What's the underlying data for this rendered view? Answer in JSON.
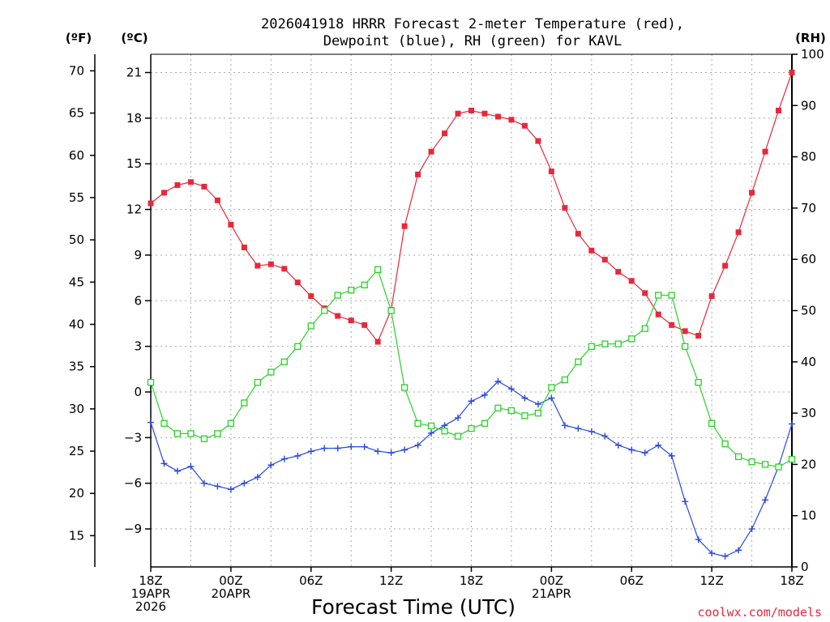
{
  "chart_data": {
    "type": "line",
    "title": "2026041918 HRRR Forecast 2-meter Temperature (red),",
    "subtitle": "Dewpoint (blue), RH (green) for KAVL",
    "xlabel": "Forecast Time (UTC)",
    "credit": "coolwx.com/models",
    "units": {
      "fahrenheit": "(ºF)",
      "celsius": "(ºC)",
      "rh": "(RH)"
    },
    "x_hours": [
      0,
      1,
      2,
      3,
      4,
      5,
      6,
      7,
      8,
      9,
      10,
      11,
      12,
      13,
      14,
      15,
      16,
      17,
      18,
      19,
      20,
      21,
      22,
      23,
      24,
      25,
      26,
      27,
      28,
      29,
      30,
      31,
      32,
      33,
      34,
      35,
      36,
      37,
      38,
      39,
      40,
      41,
      42,
      43,
      44,
      45,
      46,
      47,
      48
    ],
    "xlim": [
      0,
      48
    ],
    "x_ticks": [
      {
        "hour": 0,
        "lines": [
          "18Z",
          "19APR",
          "2026"
        ]
      },
      {
        "hour": 6,
        "lines": [
          "00Z",
          "20APR"
        ]
      },
      {
        "hour": 12,
        "lines": [
          "06Z"
        ]
      },
      {
        "hour": 18,
        "lines": [
          "12Z"
        ]
      },
      {
        "hour": 24,
        "lines": [
          "18Z"
        ]
      },
      {
        "hour": 30,
        "lines": [
          "00Z",
          "21APR"
        ]
      },
      {
        "hour": 36,
        "lines": [
          "06Z"
        ]
      },
      {
        "hour": 42,
        "lines": [
          "12Z"
        ]
      },
      {
        "hour": 48,
        "lines": [
          "18Z"
        ]
      }
    ],
    "y_celsius_ticks": [
      "21",
      "18",
      "15",
      "12",
      "9",
      "6",
      "3",
      "0",
      "−3",
      "−6",
      "−9"
    ],
    "y_celsius_values": [
      21,
      18,
      15,
      12,
      9,
      6,
      3,
      0,
      -3,
      -6,
      -9
    ],
    "ylim_celsius": [
      -11.5,
      22.2
    ],
    "y_fahrenheit_ticks": [
      "70",
      "65",
      "60",
      "55",
      "50",
      "45",
      "40",
      "35",
      "30",
      "25",
      "20",
      "15"
    ],
    "y_fahrenheit_values": [
      70,
      65,
      60,
      55,
      50,
      45,
      40,
      35,
      30,
      25,
      20,
      15
    ],
    "y_rh_ticks": [
      "100",
      "90",
      "80",
      "70",
      "60",
      "50",
      "40",
      "30",
      "20",
      "10",
      "0"
    ],
    "y_rh_values": [
      100,
      90,
      80,
      70,
      60,
      50,
      40,
      30,
      20,
      10,
      0
    ],
    "ylim_rh": [
      0,
      100
    ],
    "series": [
      {
        "name": "2-meter Temperature",
        "units": "celsius",
        "color": "#e8283a",
        "marker": "filled-square",
        "values": [
          12.4,
          13.1,
          13.6,
          13.8,
          13.5,
          12.6,
          11.0,
          9.5,
          8.3,
          8.4,
          8.1,
          7.2,
          6.3,
          5.5,
          5.0,
          4.7,
          4.4,
          3.3,
          5.4,
          10.9,
          14.3,
          15.8,
          17.0,
          18.3,
          18.5,
          18.3,
          18.1,
          17.9,
          17.5,
          16.5,
          14.5,
          12.1,
          10.4,
          9.3,
          8.7,
          7.9,
          7.3,
          6.5,
          5.1,
          4.4,
          4.0,
          3.7,
          6.3,
          8.3,
          10.5,
          13.1,
          15.8,
          18.5,
          21.0
        ]
      },
      {
        "name": "Dewpoint",
        "units": "celsius",
        "color": "#2848e0",
        "marker": "plus",
        "values": [
          -2.0,
          -4.7,
          -5.2,
          -4.9,
          -6.0,
          -6.2,
          -6.4,
          -6.0,
          -5.6,
          -4.8,
          -4.4,
          -4.2,
          -3.9,
          -3.7,
          -3.7,
          -3.6,
          -3.6,
          -3.9,
          -4.0,
          -3.8,
          -3.5,
          -2.7,
          -2.2,
          -1.7,
          -0.6,
          -0.2,
          0.7,
          0.2,
          -0.4,
          -0.8,
          -0.4,
          -2.2,
          -2.4,
          -2.6,
          -2.9,
          -3.5,
          -3.8,
          -4.0,
          -3.5,
          -4.2,
          -7.2,
          -9.7,
          -10.6,
          -10.8,
          -10.4,
          -9.0,
          -7.1,
          -4.9,
          -2.1
        ]
      },
      {
        "name": "RH",
        "units": "rh",
        "color": "#28d228",
        "marker": "open-square",
        "values": [
          36,
          28,
          26,
          26,
          25,
          26,
          28,
          32,
          36,
          38,
          40,
          43,
          47,
          50,
          53,
          54,
          55,
          58,
          50,
          35,
          28,
          27.5,
          26.5,
          25.5,
          27,
          28,
          31,
          30.5,
          29.5,
          30,
          35,
          36.5,
          40,
          43,
          43.5,
          43.5,
          44.5,
          46.5,
          53,
          53,
          43,
          36,
          28,
          24,
          21.5,
          20.5,
          20,
          19.5,
          21
        ]
      }
    ]
  }
}
